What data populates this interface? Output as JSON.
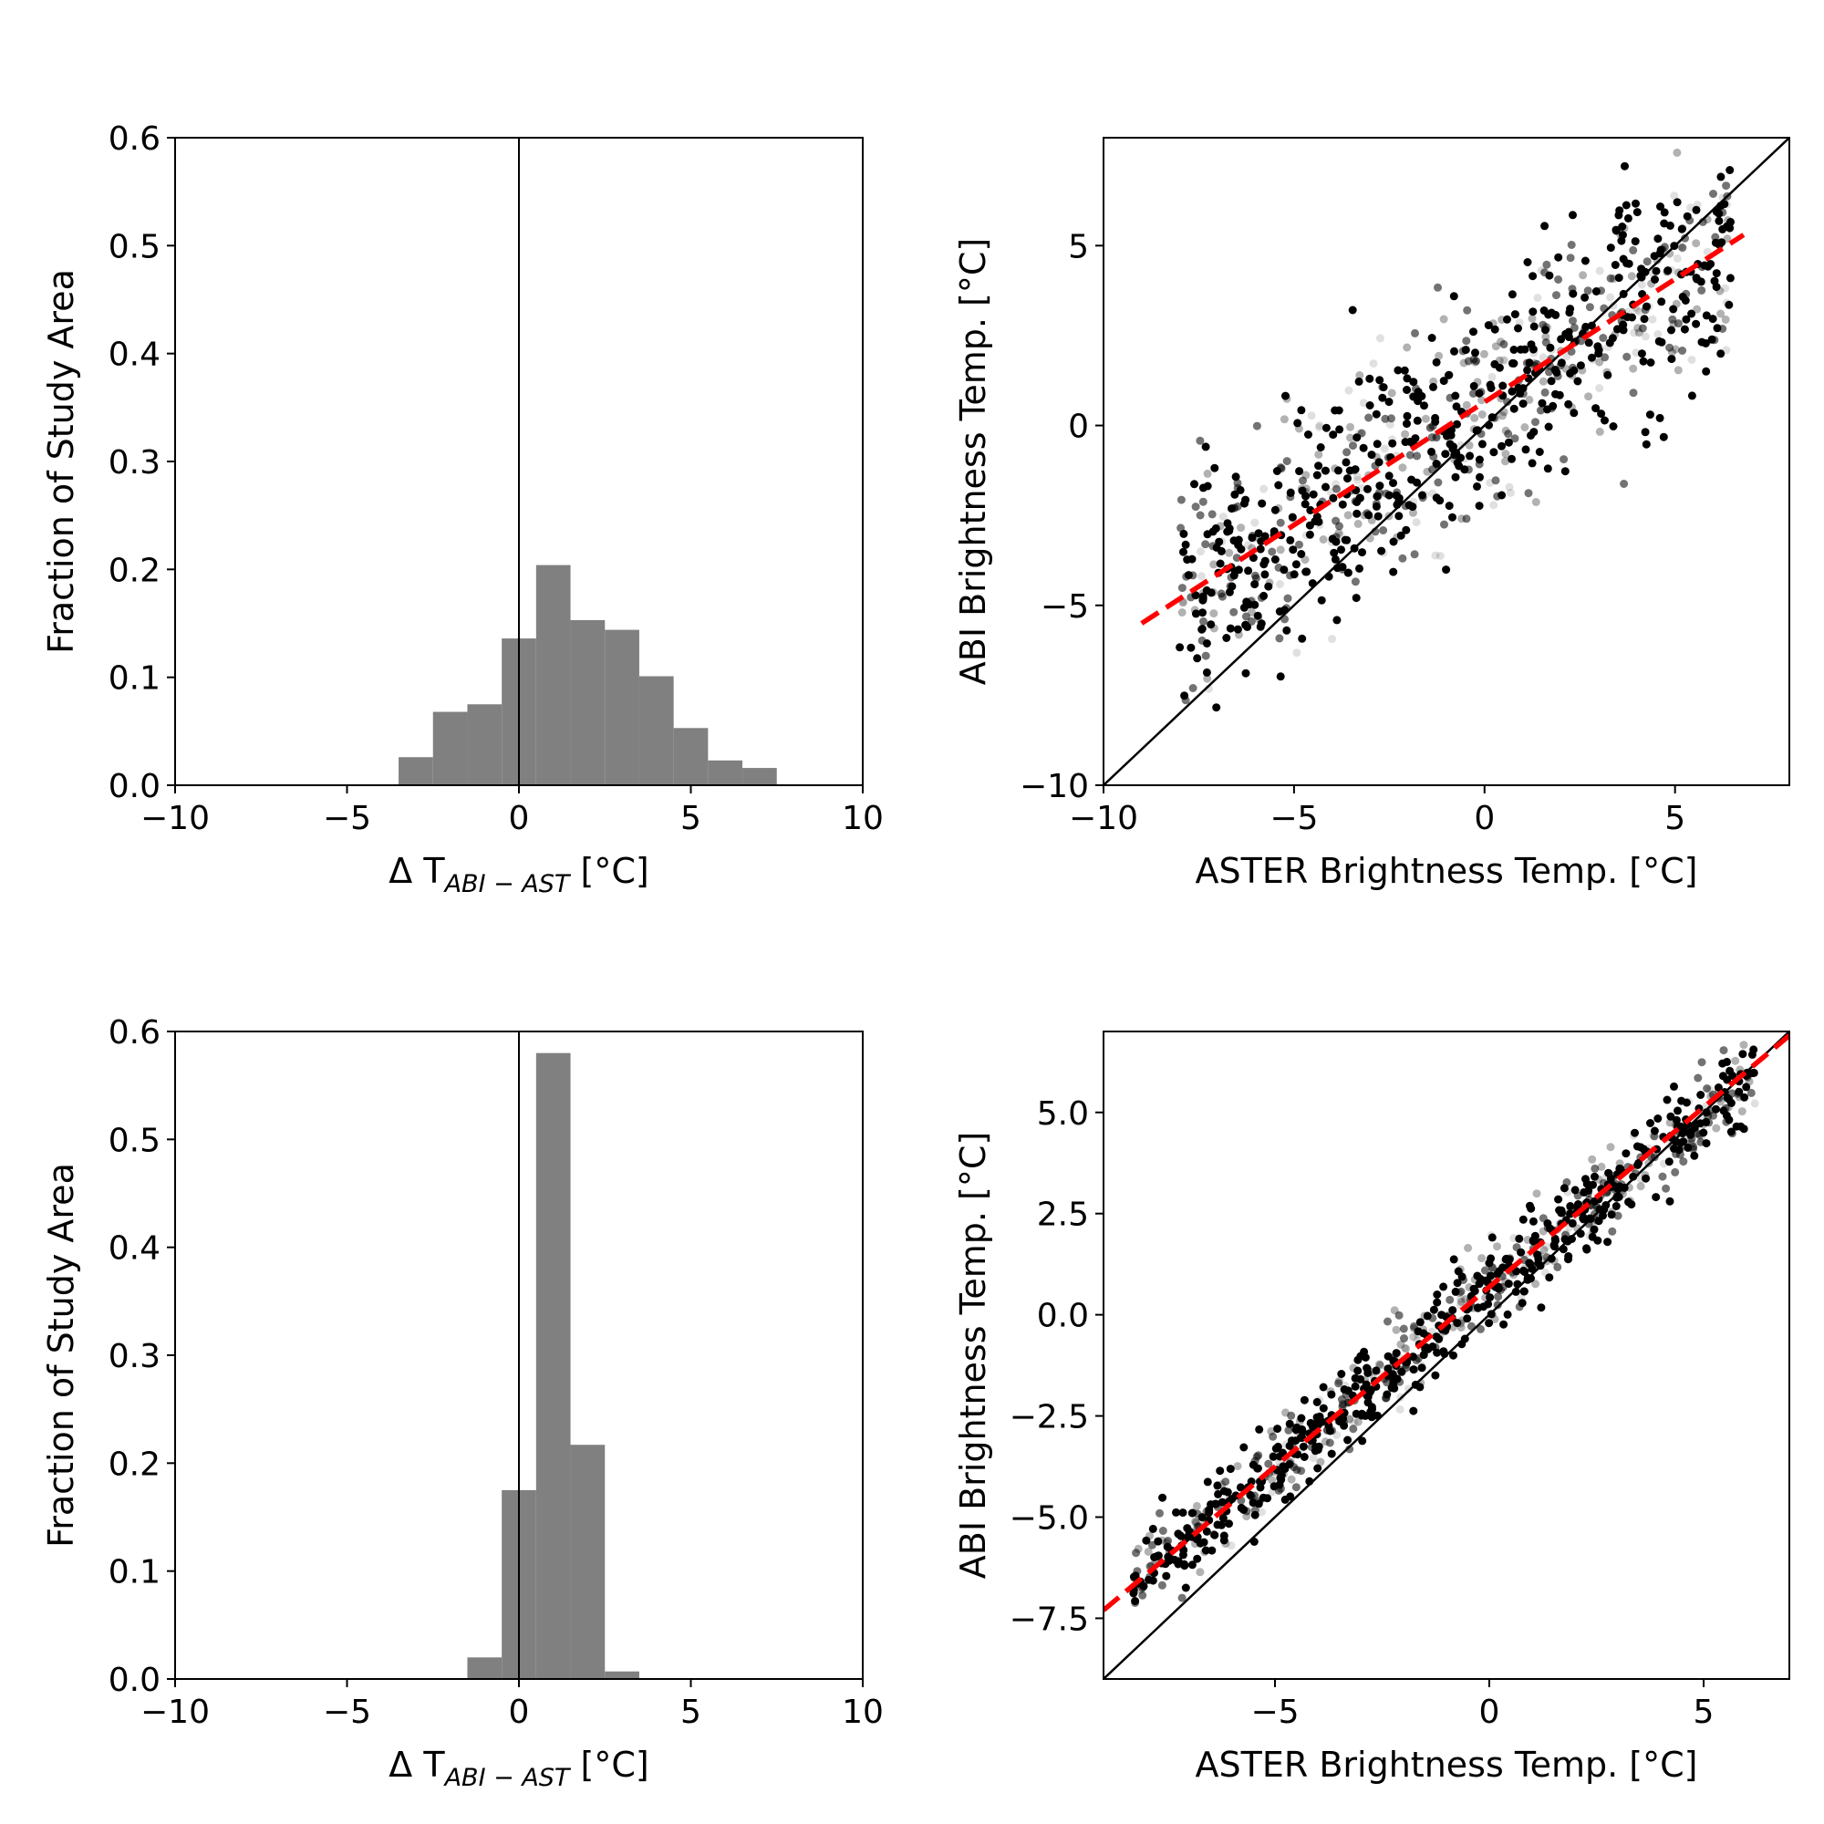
{
  "chart_data": [
    {
      "type": "bar",
      "panel": "top-left",
      "xlabel_main": "Δ T",
      "xlabel_sub": "ABI − AST",
      "xlabel_unit": " [°C]",
      "ylabel": "Fraction of Study Area",
      "xlim": [
        -10,
        10
      ],
      "ylim": [
        0,
        0.6
      ],
      "xticks": [
        -10,
        -5,
        0,
        5,
        10
      ],
      "xtick_labels": [
        "−10",
        "−5",
        "0",
        "5",
        "10"
      ],
      "yticks": [
        0.0,
        0.1,
        0.2,
        0.3,
        0.4,
        0.5,
        0.6
      ],
      "ytick_labels": [
        "0.0",
        "0.1",
        "0.2",
        "0.3",
        "0.4",
        "0.5",
        "0.6"
      ],
      "bin_edges": [
        -3.5,
        -2.5,
        -1.5,
        -0.5,
        0.5,
        1.5,
        2.5,
        3.5,
        4.5,
        5.5,
        6.5,
        7.5
      ],
      "values": [
        0.026,
        0.068,
        0.075,
        0.136,
        0.204,
        0.153,
        0.144,
        0.101,
        0.053,
        0.023,
        0.016
      ],
      "bar_color": "#808080",
      "vline_x": 0
    },
    {
      "type": "scatter",
      "panel": "top-right",
      "xlabel": "ASTER Brightness Temp. [°C]",
      "ylabel": "ABI Brightness Temp. [°C]",
      "xlim": [
        -10,
        8
      ],
      "ylim": [
        -10,
        8
      ],
      "xticks": [
        -10,
        -5,
        0,
        5
      ],
      "xtick_labels": [
        "−10",
        "−5",
        "0",
        "5"
      ],
      "yticks": [
        -10,
        -5,
        0,
        5
      ],
      "ytick_labels": [
        "−10",
        "−5",
        "0",
        "5"
      ],
      "one_to_one_line": true,
      "fit_line": {
        "x": [
          -9,
          6.8
        ],
        "y": [
          -5.5,
          5.3
        ],
        "color": "#ff0000"
      },
      "point_color": "#000000",
      "point_count": 900,
      "x_range": [
        -8,
        6.5
      ],
      "approx_slope": 0.68,
      "approx_intercept": 0.6,
      "noise_sd": 1.6
    },
    {
      "type": "bar",
      "panel": "bottom-left",
      "xlabel_main": "Δ T",
      "xlabel_sub": "ABI − AST",
      "xlabel_unit": " [°C]",
      "ylabel": "Fraction of Study Area",
      "xlim": [
        -10,
        10
      ],
      "ylim": [
        0,
        0.6
      ],
      "xticks": [
        -10,
        -5,
        0,
        5,
        10
      ],
      "xtick_labels": [
        "−10",
        "−5",
        "0",
        "5",
        "10"
      ],
      "yticks": [
        0.0,
        0.1,
        0.2,
        0.3,
        0.4,
        0.5,
        0.6
      ],
      "ytick_labels": [
        "0.0",
        "0.1",
        "0.2",
        "0.3",
        "0.4",
        "0.5",
        "0.6"
      ],
      "bin_edges": [
        -1.5,
        -0.5,
        0.5,
        1.5,
        2.5,
        3.5
      ],
      "values": [
        0.02,
        0.175,
        0.58,
        0.217,
        0.007
      ],
      "bar_color": "#808080",
      "vline_x": 0
    },
    {
      "type": "scatter",
      "panel": "bottom-right",
      "xlabel": "ASTER Brightness Temp. [°C]",
      "ylabel": "ABI Brightness Temp. [°C]",
      "xlim": [
        -9,
        7
      ],
      "ylim": [
        -9,
        7
      ],
      "xticks": [
        -5,
        0,
        5
      ],
      "xtick_labels": [
        "−5",
        "0",
        "5"
      ],
      "yticks": [
        -7.5,
        -5.0,
        -2.5,
        0.0,
        2.5,
        5.0
      ],
      "ytick_labels": [
        "−7.5",
        "−5.0",
        "−2.5",
        "0.0",
        "2.5",
        "5.0"
      ],
      "one_to_one_line": true,
      "fit_line": {
        "x": [
          -9,
          7
        ],
        "y": [
          -7.3,
          6.9
        ],
        "color": "#ff0000"
      },
      "point_color": "#000000",
      "point_count": 900,
      "x_range": [
        -8.3,
        6.2
      ],
      "approx_slope": 0.87,
      "approx_intercept": 0.6,
      "noise_sd": 0.55
    }
  ]
}
